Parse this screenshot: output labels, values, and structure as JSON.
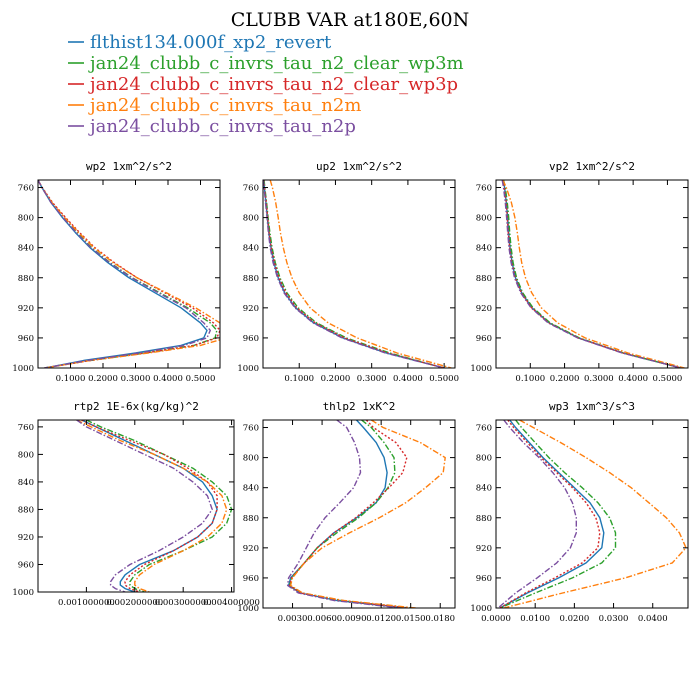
{
  "figure": {
    "title": "CLUBB VAR at180E,60N",
    "legend": [
      {
        "label": "flthist134.000f_xp2_revert",
        "color": "#1f77b4",
        "dash": "solid"
      },
      {
        "label": "jan24_clubb_c_invrs_tau_n2_clear_wp3m",
        "color": "#2ca02c",
        "dash": "dashdot"
      },
      {
        "label": "jan24_clubb_c_invrs_tau_n2_clear_wp3p",
        "color": "#d62728",
        "dash": "dot"
      },
      {
        "label": "jan24_clubb_c_invrs_tau_n2m",
        "color": "#ff7f0e",
        "dash": "dashdot"
      },
      {
        "label": "jan24_clubb_c_invrs_tau_n2p",
        "color": "#7b4fa0",
        "dash": "dashdot"
      }
    ]
  },
  "chart_data": [
    {
      "type": "line",
      "title": "wp2  1xm^2/s^2",
      "xlim": [
        0,
        0.56
      ],
      "ylim": [
        1000,
        750
      ],
      "y_inverted": true,
      "xticks": [
        0.1,
        0.2,
        0.3,
        0.4,
        0.5
      ],
      "xticklabels": [
        "0.1000",
        "0.2000",
        "0.3000",
        "0.4000",
        "0.5000"
      ],
      "yticks": [
        760,
        800,
        840,
        880,
        920,
        960,
        1000
      ],
      "y": [
        750,
        760,
        780,
        800,
        820,
        840,
        860,
        880,
        900,
        920,
        940,
        950,
        960,
        970,
        980,
        990,
        1000
      ],
      "series": [
        {
          "values": [
            0.0,
            0.012,
            0.04,
            0.075,
            0.115,
            0.16,
            0.215,
            0.28,
            0.36,
            0.44,
            0.5,
            0.52,
            0.51,
            0.44,
            0.3,
            0.14,
            0.02
          ]
        },
        {
          "values": [
            0.0,
            0.012,
            0.042,
            0.08,
            0.12,
            0.165,
            0.222,
            0.29,
            0.375,
            0.46,
            0.53,
            0.55,
            0.545,
            0.48,
            0.33,
            0.16,
            0.02
          ]
        },
        {
          "values": [
            0.0,
            0.013,
            0.045,
            0.085,
            0.128,
            0.175,
            0.235,
            0.305,
            0.39,
            0.475,
            0.54,
            0.56,
            0.55,
            0.48,
            0.33,
            0.16,
            0.02
          ]
        },
        {
          "values": [
            0.0,
            0.012,
            0.043,
            0.082,
            0.125,
            0.172,
            0.232,
            0.305,
            0.395,
            0.485,
            0.56,
            0.585,
            0.58,
            0.5,
            0.34,
            0.16,
            0.02
          ]
        },
        {
          "values": [
            0.0,
            0.012,
            0.04,
            0.077,
            0.118,
            0.163,
            0.22,
            0.288,
            0.37,
            0.455,
            0.51,
            0.53,
            0.52,
            0.45,
            0.31,
            0.15,
            0.02
          ]
        }
      ]
    },
    {
      "type": "line",
      "title": "up2  1xm^2/s^2",
      "xlim": [
        0,
        0.53
      ],
      "ylim": [
        1000,
        750
      ],
      "y_inverted": true,
      "xticks": [
        0.1,
        0.2,
        0.3,
        0.4,
        0.5
      ],
      "xticklabels": [
        "0.1000",
        "0.2000",
        "0.3000",
        "0.4000",
        "0.5000"
      ],
      "yticks": [
        760,
        800,
        840,
        880,
        920,
        960,
        1000
      ],
      "y": [
        750,
        760,
        780,
        800,
        820,
        840,
        860,
        880,
        900,
        920,
        940,
        960,
        980,
        1000
      ],
      "series": [
        {
          "values": [
            0.002,
            0.004,
            0.008,
            0.012,
            0.016,
            0.022,
            0.03,
            0.042,
            0.06,
            0.09,
            0.14,
            0.22,
            0.34,
            0.5
          ]
        },
        {
          "values": [
            0.003,
            0.005,
            0.01,
            0.014,
            0.019,
            0.025,
            0.034,
            0.047,
            0.066,
            0.097,
            0.148,
            0.23,
            0.35,
            0.5
          ]
        },
        {
          "values": [
            0.002,
            0.004,
            0.009,
            0.013,
            0.017,
            0.023,
            0.032,
            0.044,
            0.063,
            0.093,
            0.144,
            0.225,
            0.345,
            0.5
          ]
        },
        {
          "values": [
            0.02,
            0.026,
            0.035,
            0.042,
            0.048,
            0.056,
            0.066,
            0.08,
            0.1,
            0.13,
            0.18,
            0.26,
            0.37,
            0.52
          ]
        },
        {
          "values": [
            0.001,
            0.003,
            0.007,
            0.011,
            0.015,
            0.02,
            0.028,
            0.04,
            0.058,
            0.088,
            0.138,
            0.218,
            0.338,
            0.5
          ]
        }
      ]
    },
    {
      "type": "line",
      "title": "vp2  1xm^2/s^2",
      "xlim": [
        0,
        0.56
      ],
      "ylim": [
        1000,
        750
      ],
      "y_inverted": true,
      "xticks": [
        0.1,
        0.2,
        0.3,
        0.4,
        0.5
      ],
      "xticklabels": [
        "0.1000",
        "0.2000",
        "0.3000",
        "0.4000",
        "0.5000"
      ],
      "yticks": [
        760,
        800,
        840,
        880,
        920,
        960,
        1000
      ],
      "y": [
        750,
        760,
        780,
        800,
        820,
        840,
        860,
        880,
        900,
        920,
        940,
        960,
        980,
        1000
      ],
      "series": [
        {
          "values": [
            0.02,
            0.025,
            0.03,
            0.034,
            0.037,
            0.041,
            0.047,
            0.057,
            0.075,
            0.105,
            0.155,
            0.24,
            0.37,
            0.54
          ]
        },
        {
          "values": [
            0.022,
            0.027,
            0.033,
            0.037,
            0.04,
            0.044,
            0.05,
            0.06,
            0.078,
            0.108,
            0.158,
            0.243,
            0.372,
            0.54
          ]
        },
        {
          "values": [
            0.02,
            0.024,
            0.03,
            0.033,
            0.036,
            0.04,
            0.046,
            0.056,
            0.074,
            0.104,
            0.154,
            0.24,
            0.37,
            0.54
          ]
        },
        {
          "values": [
            0.02,
            0.03,
            0.045,
            0.055,
            0.062,
            0.068,
            0.075,
            0.086,
            0.104,
            0.132,
            0.18,
            0.26,
            0.385,
            0.55
          ]
        },
        {
          "values": [
            0.018,
            0.022,
            0.027,
            0.031,
            0.034,
            0.038,
            0.044,
            0.054,
            0.072,
            0.102,
            0.152,
            0.238,
            0.368,
            0.54
          ]
        }
      ]
    },
    {
      "type": "line",
      "title": "rtp2  1E-6x(kg/kg)^2",
      "xlim": [
        0,
        0.00405
      ],
      "ylim": [
        1000,
        750
      ],
      "y_inverted": true,
      "xticks": [
        0.001,
        0.002,
        0.003,
        0.004
      ],
      "xticklabels": [
        "0.001000000",
        "0.002000000",
        "0.003000000",
        "0.004000000"
      ],
      "yticks": [
        760,
        800,
        840,
        880,
        920,
        960,
        1000
      ],
      "y": [
        750,
        760,
        780,
        800,
        820,
        840,
        860,
        880,
        900,
        920,
        940,
        960,
        975,
        985,
        990,
        995,
        1000
      ],
      "series": [
        {
          "values": [
            0.0009,
            0.0012,
            0.0018,
            0.0024,
            0.003,
            0.0034,
            0.0036,
            0.0037,
            0.0036,
            0.0033,
            0.0028,
            0.0021,
            0.0018,
            0.0017,
            0.0017,
            0.0018,
            0.002
          ]
        },
        {
          "values": [
            0.001,
            0.0013,
            0.002,
            0.0026,
            0.0032,
            0.0036,
            0.0039,
            0.004,
            0.0039,
            0.0036,
            0.003,
            0.0023,
            0.002,
            0.0019,
            0.0019,
            0.002,
            0.0022
          ]
        },
        {
          "values": [
            0.0009,
            0.0012,
            0.0019,
            0.0026,
            0.0031,
            0.0035,
            0.0037,
            0.0037,
            0.0036,
            0.0033,
            0.0028,
            0.0022,
            0.0019,
            0.0018,
            0.0018,
            0.0019,
            0.0021
          ]
        },
        {
          "values": [
            0.0008,
            0.0011,
            0.0017,
            0.0024,
            0.003,
            0.0035,
            0.0038,
            0.0039,
            0.0038,
            0.0035,
            0.003,
            0.0024,
            0.0021,
            0.002,
            0.002,
            0.0021,
            0.0023
          ]
        },
        {
          "values": [
            0.0008,
            0.001,
            0.0016,
            0.0022,
            0.0028,
            0.0032,
            0.0035,
            0.0036,
            0.0034,
            0.003,
            0.0025,
            0.0019,
            0.0016,
            0.0015,
            0.0015,
            0.0016,
            0.0018
          ]
        }
      ]
    },
    {
      "type": "line",
      "title": "thlp2  1xK^2",
      "xlim": [
        0,
        0.0195
      ],
      "ylim": [
        1000,
        750
      ],
      "y_inverted": true,
      "xticks": [
        0.003,
        0.006,
        0.009,
        0.012,
        0.015,
        0.018
      ],
      "xticklabels": [
        "0.0030",
        "0.0060",
        "0.0090",
        "0.0120",
        "0.0150",
        "0.0180"
      ],
      "yticks": [
        760,
        800,
        840,
        880,
        920,
        960,
        1000
      ],
      "y": [
        750,
        760,
        780,
        800,
        820,
        840,
        860,
        880,
        900,
        920,
        940,
        960,
        970,
        980,
        990,
        1000
      ],
      "series": [
        {
          "values": [
            0.0095,
            0.0102,
            0.0115,
            0.0123,
            0.0126,
            0.0124,
            0.0115,
            0.0095,
            0.0072,
            0.0055,
            0.0042,
            0.0028,
            0.0026,
            0.0038,
            0.0075,
            0.0145
          ]
        },
        {
          "values": [
            0.01,
            0.011,
            0.0123,
            0.0133,
            0.0134,
            0.0127,
            0.0115,
            0.0097,
            0.0075,
            0.0055,
            0.0042,
            0.0029,
            0.0027,
            0.004,
            0.008,
            0.015
          ]
        },
        {
          "values": [
            0.0105,
            0.0112,
            0.0135,
            0.0146,
            0.0142,
            0.0128,
            0.0112,
            0.0094,
            0.0072,
            0.0055,
            0.0042,
            0.0029,
            0.0027,
            0.0038,
            0.0078,
            0.0148
          ]
        },
        {
          "values": [
            0.011,
            0.0122,
            0.016,
            0.0185,
            0.0183,
            0.0165,
            0.0145,
            0.0118,
            0.0088,
            0.006,
            0.0042,
            0.003,
            0.0028,
            0.004,
            0.0082,
            0.0155
          ]
        },
        {
          "values": [
            0.0075,
            0.0085,
            0.0093,
            0.0098,
            0.0099,
            0.0092,
            0.0078,
            0.0063,
            0.0052,
            0.0044,
            0.0036,
            0.0026,
            0.0025,
            0.0036,
            0.0072,
            0.014
          ]
        }
      ]
    },
    {
      "type": "line",
      "title": "wp3  1xm^3/s^3",
      "xlim": [
        0,
        0.049
      ],
      "ylim": [
        1000,
        750
      ],
      "y_inverted": true,
      "xticks": [
        0.0,
        0.01,
        0.02,
        0.03,
        0.04
      ],
      "xticklabels": [
        "0.0000",
        "0.0100",
        "0.0200",
        "0.0300",
        "0.0400"
      ],
      "yticks": [
        760,
        800,
        840,
        880,
        920,
        960,
        1000
      ],
      "y": [
        750,
        760,
        780,
        800,
        820,
        840,
        860,
        880,
        900,
        920,
        940,
        960,
        980,
        1000
      ],
      "series": [
        {
          "values": [
            0.0035,
            0.005,
            0.0085,
            0.012,
            0.016,
            0.02,
            0.024,
            0.0265,
            0.0275,
            0.027,
            0.023,
            0.016,
            0.008,
            0.001
          ]
        },
        {
          "values": [
            0.005,
            0.0065,
            0.01,
            0.0135,
            0.0175,
            0.022,
            0.026,
            0.029,
            0.0305,
            0.0305,
            0.027,
            0.0195,
            0.01,
            0.001
          ]
        },
        {
          "values": [
            0.003,
            0.0045,
            0.008,
            0.0115,
            0.0155,
            0.0195,
            0.023,
            0.0255,
            0.0265,
            0.026,
            0.022,
            0.015,
            0.0075,
            0.001
          ]
        },
        {
          "values": [
            0.006,
            0.0095,
            0.0165,
            0.023,
            0.029,
            0.0345,
            0.039,
            0.0435,
            0.0468,
            0.0485,
            0.045,
            0.033,
            0.017,
            0.002
          ]
        },
        {
          "values": [
            0.002,
            0.0035,
            0.007,
            0.011,
            0.0145,
            0.0175,
            0.0195,
            0.0205,
            0.0205,
            0.019,
            0.0155,
            0.0105,
            0.005,
            0.0005
          ]
        }
      ]
    }
  ]
}
